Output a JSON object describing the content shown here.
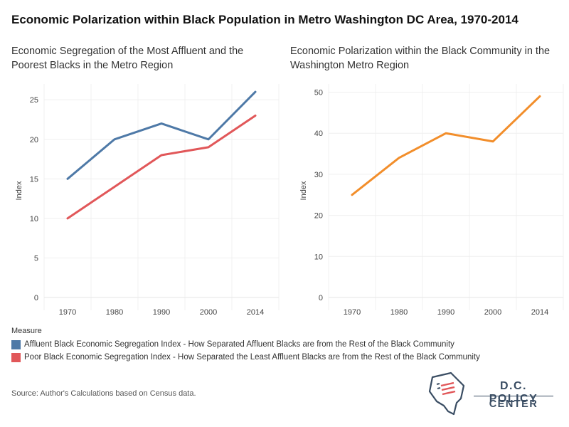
{
  "main_title": "Economic Polarization within Black Population in Metro Washington DC Area, 1970-2014",
  "source": "Source: Author's Calculations based on Census data.",
  "logo": {
    "line1": "D.C. POLICY",
    "line2": "CENTER"
  },
  "legend": {
    "title": "Measure",
    "items": [
      {
        "label": "Affluent Black Economic Segregation Index - How Separated Affluent Blacks are from the Rest of the Black Community",
        "color": "#4e79a7"
      },
      {
        "label": "Poor Black Economic Segregation Index - How Separated  the Least Affluent Blacks are from the Rest of the Black Community",
        "color": "#e15759"
      }
    ]
  },
  "chart_data": [
    {
      "type": "line",
      "title": "Economic Segregation of the Most Affluent and the Poorest Blacks in the Metro Region",
      "xlabel": "",
      "ylabel": "Index",
      "categories": [
        "1970",
        "1980",
        "1990",
        "2000",
        "2014"
      ],
      "ylim": [
        0,
        27
      ],
      "yticks": [
        0,
        5,
        10,
        15,
        20,
        25
      ],
      "grid": true,
      "series": [
        {
          "name": "Affluent Black Economic Segregation Index - How Separated Affluent Blacks are from the Rest of the Black Community",
          "color": "#4e79a7",
          "values": [
            15,
            20,
            22,
            20,
            26
          ]
        },
        {
          "name": "Poor Black Economic Segregation Index - How Separated  the Least Affluent Blacks are from the Rest of the Black Community",
          "color": "#e15759",
          "values": [
            10,
            14,
            18,
            19,
            23
          ]
        }
      ]
    },
    {
      "type": "line",
      "title": "Economic Polarization within the Black Community in the Washington Metro Region",
      "xlabel": "",
      "ylabel": "Index",
      "categories": [
        "1970",
        "1980",
        "1990",
        "2000",
        "2014"
      ],
      "ylim": [
        0,
        52
      ],
      "yticks": [
        0,
        10,
        20,
        30,
        40,
        50
      ],
      "grid": true,
      "series": [
        {
          "color": "#f28e2b",
          "values": [
            25,
            34,
            40,
            38,
            49
          ]
        }
      ]
    }
  ]
}
